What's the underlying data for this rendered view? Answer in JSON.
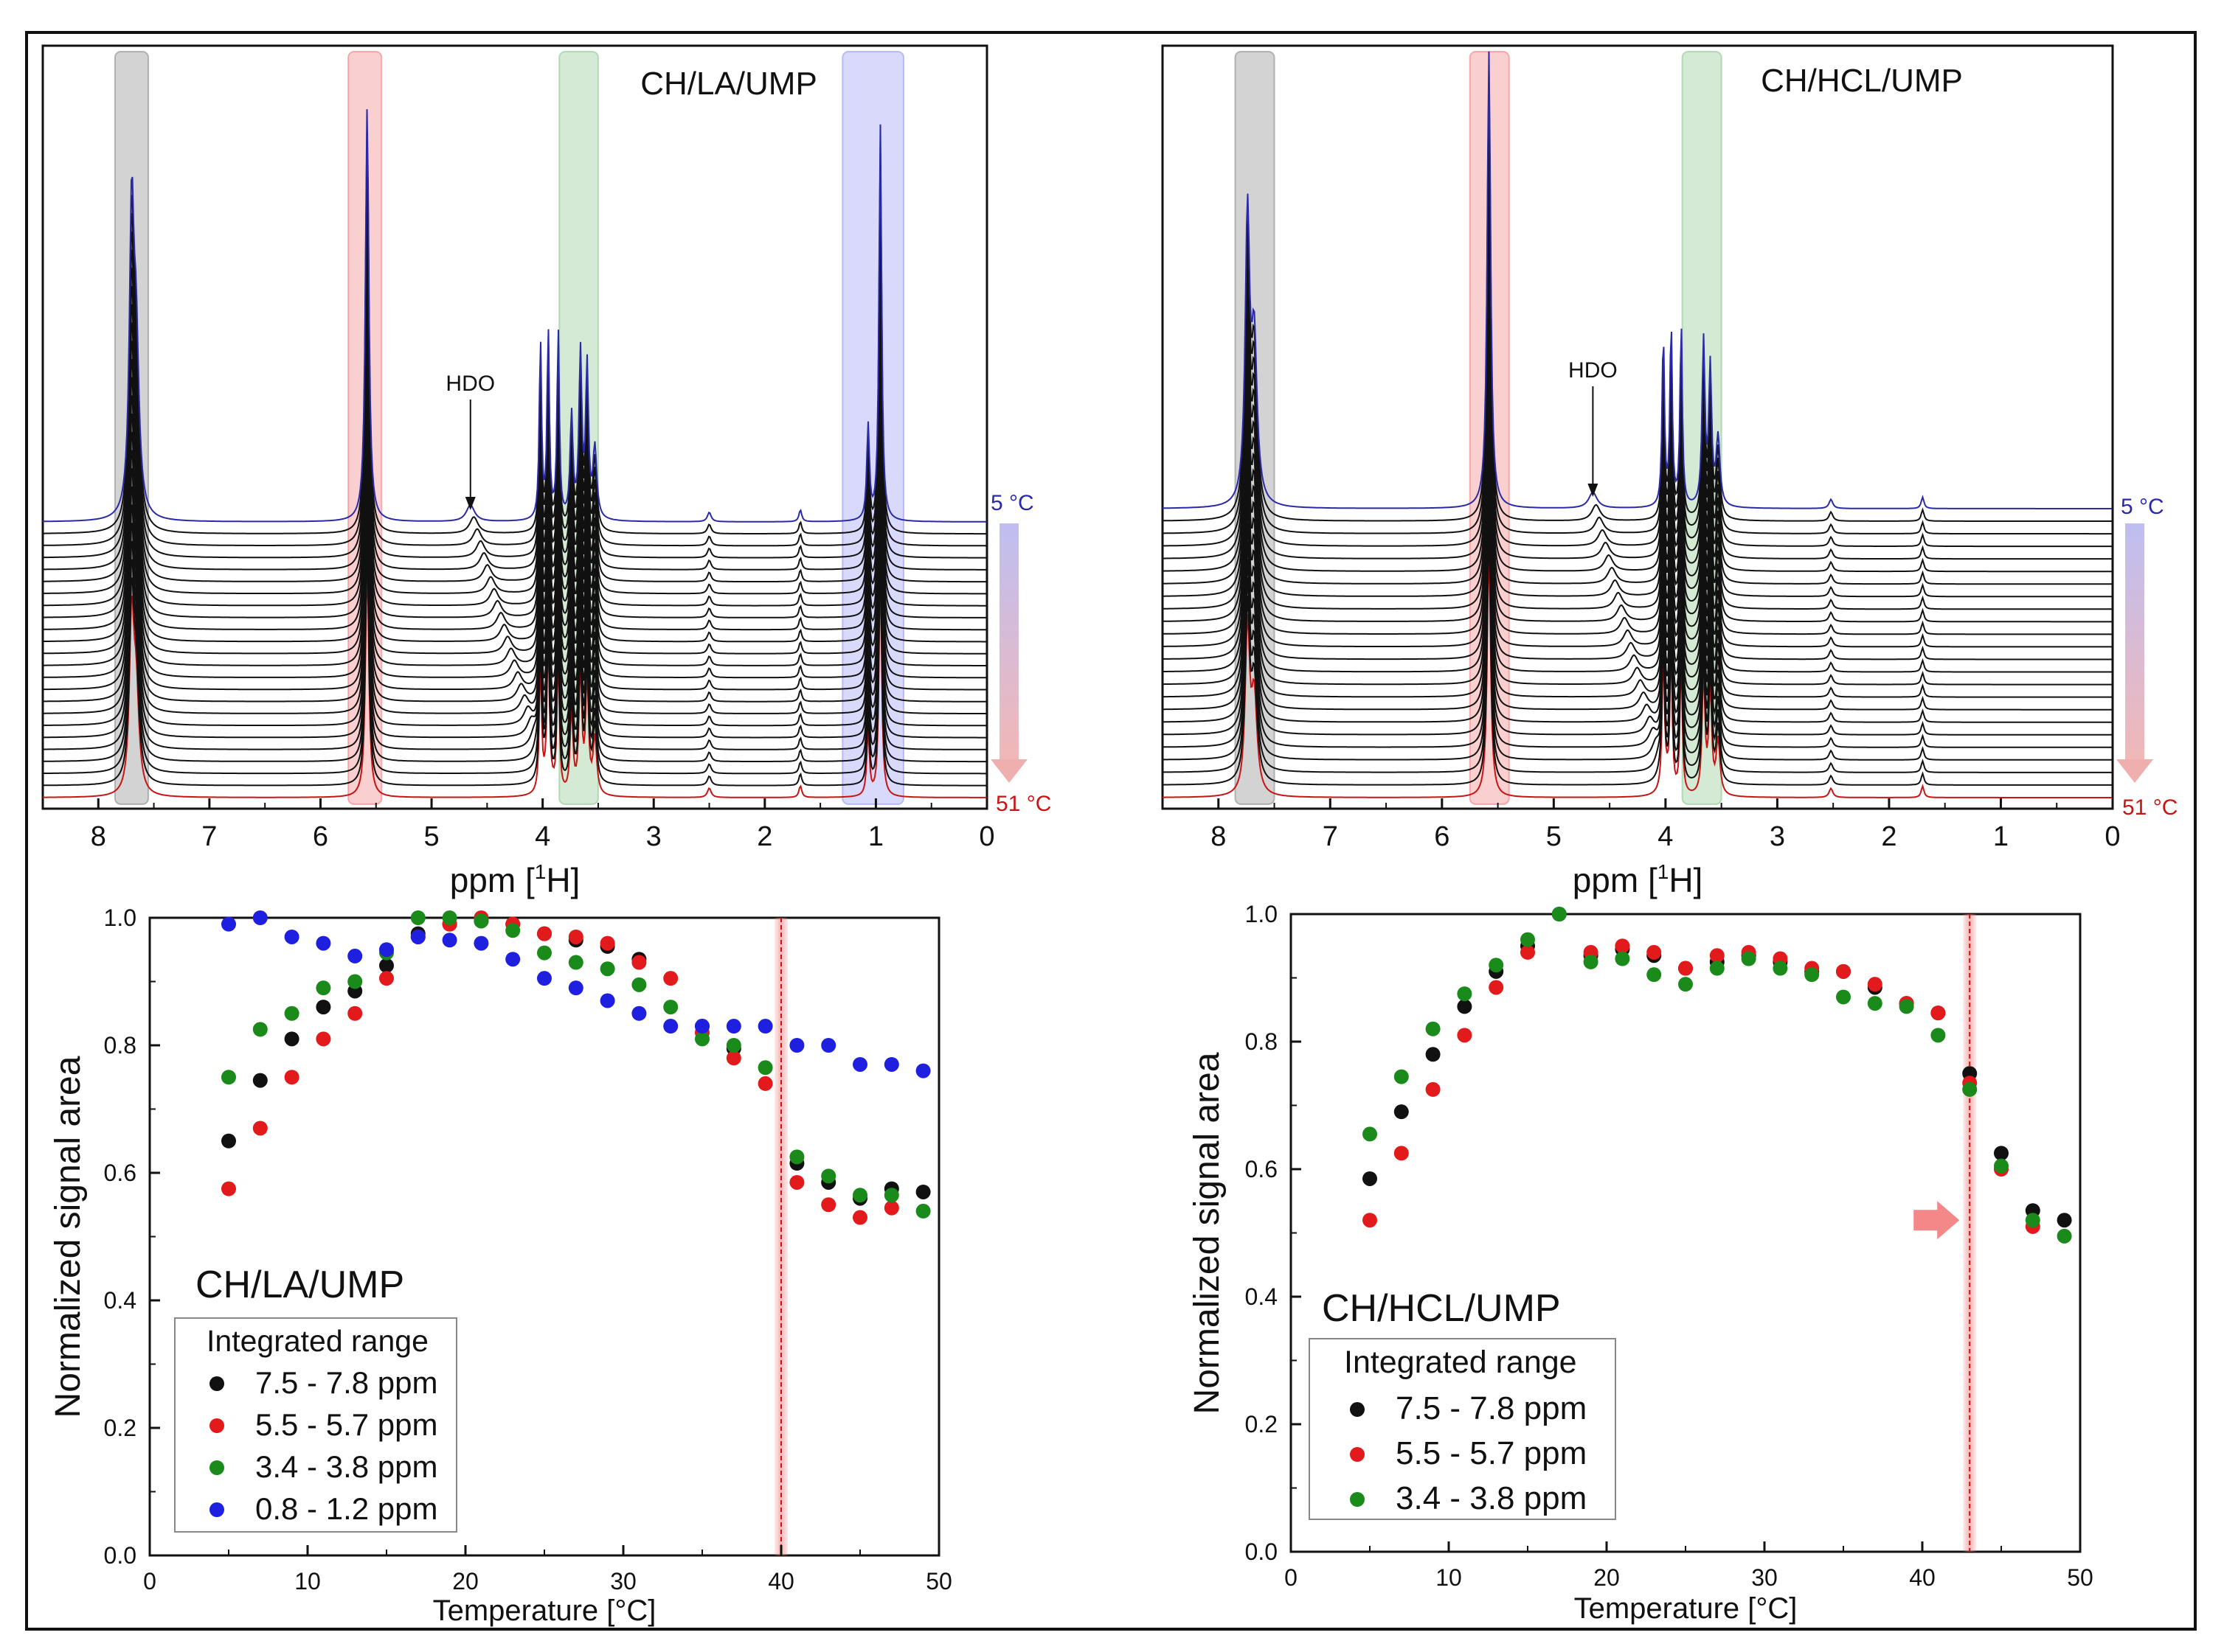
{
  "colors": {
    "black": "#111111",
    "red": "#e31a1c",
    "green": "#1a8a1a",
    "blue": "#1f1fe0",
    "band_gray": "#8c8c8c",
    "band_red": "#f08080",
    "band_green": "#90c890",
    "band_blue": "#9a9af5",
    "spec_top": "#2a2aa8",
    "spec_bottom": "#c81414",
    "temp_high": "#e06060",
    "temp_low": "#7070e0"
  },
  "chart_data": [
    {
      "id": "spectrum-left",
      "type": "line",
      "title": "CH/LA/UMP",
      "xlabel_pre": "ppm [",
      "xlabel_sup": "1",
      "xlabel_post": "H]",
      "xlim": [
        8.5,
        0
      ],
      "xticks": [
        "8",
        "7",
        "6",
        "5",
        "4",
        "3",
        "2",
        "1",
        "0"
      ],
      "annotation": "HDO",
      "annotation_ppm": 4.65,
      "temp_top": "5 °C",
      "temp_bottom": "51 °C",
      "highlight_bands_ppm": [
        [
          7.85,
          7.55
        ],
        [
          5.75,
          5.45
        ],
        [
          3.85,
          3.5
        ],
        [
          1.3,
          0.75
        ]
      ],
      "peaks": [
        {
          "ppm": 7.7,
          "h": 0.62,
          "hb": 0.36,
          "w": 0.024
        },
        {
          "ppm": 7.66,
          "h": 0.35,
          "hb": 0.21,
          "w": 0.03
        },
        {
          "ppm": 5.58,
          "h": 0.88,
          "hb": 0.5,
          "w": 0.018
        },
        {
          "ppm": 4.02,
          "h": 0.38,
          "hb": 0.28,
          "w": 0.012
        },
        {
          "ppm": 3.95,
          "h": 0.4,
          "hb": 0.3,
          "w": 0.012
        },
        {
          "ppm": 3.86,
          "h": 0.4,
          "hb": 0.3,
          "w": 0.012
        },
        {
          "ppm": 3.74,
          "h": 0.22,
          "hb": 0.18,
          "w": 0.015
        },
        {
          "ppm": 3.66,
          "h": 0.35,
          "hb": 0.27,
          "w": 0.015
        },
        {
          "ppm": 3.6,
          "h": 0.32,
          "hb": 0.25,
          "w": 0.015
        },
        {
          "ppm": 3.53,
          "h": 0.15,
          "hb": 0.12,
          "w": 0.02
        },
        {
          "ppm": 2.5,
          "h": 0.02,
          "hb": 0.02,
          "w": 0.02
        },
        {
          "ppm": 1.68,
          "h": 0.025,
          "hb": 0.025,
          "w": 0.015
        },
        {
          "ppm": 1.07,
          "h": 0.2,
          "hb": 0.14,
          "w": 0.014
        },
        {
          "ppm": 0.96,
          "h": 0.84,
          "hb": 0.5,
          "w": 0.014
        }
      ],
      "hdo_ppm_range": [
        4.65,
        3.95
      ],
      "n_traces": 24
    },
    {
      "id": "spectrum-right",
      "type": "line",
      "title": "CH/HCL/UMP",
      "xlabel_pre": "ppm [",
      "xlabel_sup": "1",
      "xlabel_post": "H]",
      "xlim": [
        8.5,
        0
      ],
      "xticks": [
        "8",
        "7",
        "6",
        "5",
        "4",
        "3",
        "2",
        "1",
        "0"
      ],
      "annotation": "HDO",
      "annotation_ppm": 4.65,
      "temp_top": "5 °C",
      "temp_bottom": "51 °C",
      "highlight_bands_ppm": [
        [
          7.85,
          7.5
        ],
        [
          5.75,
          5.4
        ],
        [
          3.85,
          3.5
        ]
      ],
      "peaks": [
        {
          "ppm": 7.74,
          "h": 0.62,
          "hb": 0.36,
          "w": 0.024
        },
        {
          "ppm": 7.68,
          "h": 0.35,
          "hb": 0.21,
          "w": 0.03
        },
        {
          "ppm": 5.58,
          "h": 1.0,
          "hb": 0.56,
          "w": 0.018
        },
        {
          "ppm": 4.02,
          "h": 0.38,
          "hb": 0.28,
          "w": 0.012
        },
        {
          "ppm": 3.95,
          "h": 0.4,
          "hb": 0.3,
          "w": 0.012
        },
        {
          "ppm": 3.86,
          "h": 0.4,
          "hb": 0.3,
          "w": 0.012
        },
        {
          "ppm": 3.66,
          "h": 0.36,
          "hb": 0.27,
          "w": 0.015
        },
        {
          "ppm": 3.6,
          "h": 0.3,
          "hb": 0.24,
          "w": 0.015
        },
        {
          "ppm": 3.53,
          "h": 0.15,
          "hb": 0.12,
          "w": 0.02
        },
        {
          "ppm": 2.52,
          "h": 0.02,
          "hb": 0.02,
          "w": 0.02
        },
        {
          "ppm": 1.7,
          "h": 0.025,
          "hb": 0.025,
          "w": 0.015
        }
      ],
      "hdo_ppm_range": [
        4.65,
        4.0
      ],
      "n_traces": 24
    },
    {
      "id": "scatter-left",
      "type": "scatter",
      "title": "CH/LA/UMP",
      "xlabel": "Temperature [°C]",
      "ylabel": "Normalized signal area",
      "xlim": [
        0,
        50
      ],
      "ylim": [
        0.0,
        1.0
      ],
      "xticks": [
        "0",
        "10",
        "20",
        "30",
        "40",
        "50"
      ],
      "yticks": [
        "0.0",
        "0.2",
        "0.4",
        "0.6",
        "0.8",
        "1.0"
      ],
      "vline_x": 40,
      "legend_title": "Integrated range",
      "legend_position": "bottom-left",
      "x": [
        5,
        7,
        9,
        11,
        13,
        15,
        17,
        19,
        21,
        23,
        25,
        27,
        29,
        31,
        33,
        35,
        37,
        39,
        41,
        43,
        45,
        47,
        49
      ],
      "series": [
        {
          "name": "7.5 - 7.8 ppm",
          "color": "#111111",
          "x": [
            5,
            7,
            9,
            11,
            13,
            15,
            17,
            19,
            21,
            23,
            25,
            27,
            29,
            31,
            35,
            37,
            41,
            43,
            45,
            47,
            49
          ],
          "values": [
            0.65,
            0.745,
            0.81,
            0.86,
            0.885,
            0.925,
            0.975,
            0.99,
            0.995,
            0.99,
            0.975,
            0.965,
            0.955,
            0.935,
            0.83,
            0.795,
            0.615,
            0.585,
            0.56,
            0.575,
            0.57
          ]
        },
        {
          "name": "5.5 - 5.7 ppm",
          "color": "#e31a1c",
          "x": [
            5,
            7,
            9,
            11,
            13,
            15,
            17,
            19,
            21,
            23,
            25,
            27,
            29,
            31,
            33,
            35,
            37,
            39,
            41,
            43,
            45,
            47
          ],
          "values": [
            0.575,
            0.67,
            0.75,
            0.81,
            0.85,
            0.905,
            0.97,
            0.99,
            1.0,
            0.99,
            0.975,
            0.97,
            0.96,
            0.93,
            0.905,
            0.82,
            0.78,
            0.74,
            0.585,
            0.55,
            0.53,
            0.545
          ]
        },
        {
          "name": "3.4 - 3.8 ppm",
          "color": "#1a8a1a",
          "x": [
            5,
            7,
            9,
            11,
            13,
            15,
            17,
            19,
            21,
            23,
            25,
            27,
            29,
            31,
            33,
            35,
            37,
            39,
            41,
            43,
            45,
            47,
            49
          ],
          "values": [
            0.75,
            0.825,
            0.85,
            0.89,
            0.9,
            0.945,
            1.0,
            1.0,
            0.995,
            0.98,
            0.945,
            0.93,
            0.92,
            0.895,
            0.86,
            0.81,
            0.8,
            0.765,
            0.625,
            0.595,
            0.565,
            0.565,
            0.54
          ]
        },
        {
          "name": "0.8 - 1.2 ppm",
          "color": "#1f1fe0",
          "x": [
            5,
            7,
            9,
            11,
            13,
            15,
            17,
            19,
            21,
            23,
            25,
            27,
            29,
            31,
            33,
            35,
            37,
            39,
            41,
            43,
            45,
            47,
            49
          ],
          "values": [
            0.99,
            1.0,
            0.97,
            0.96,
            0.94,
            0.95,
            0.97,
            0.965,
            0.96,
            0.935,
            0.905,
            0.89,
            0.87,
            0.85,
            0.83,
            0.83,
            0.83,
            0.83,
            0.8,
            0.8,
            0.77,
            0.77,
            0.76
          ]
        }
      ]
    },
    {
      "id": "scatter-right",
      "type": "scatter",
      "title": "CH/HCL/UMP",
      "xlabel": "Temperature [°C]",
      "ylabel": "Normalized signal area",
      "xlim": [
        0,
        50
      ],
      "ylim": [
        0.0,
        1.0
      ],
      "xticks": [
        "0",
        "10",
        "20",
        "30",
        "40",
        "50"
      ],
      "yticks": [
        "0.0",
        "0.2",
        "0.4",
        "0.6",
        "0.8",
        "1.0"
      ],
      "vline_x": 43,
      "arrow_y": 0.52,
      "legend_title": "Integrated range",
      "legend_position": "bottom-left",
      "series": [
        {
          "name": "7.5 - 7.8 ppm",
          "color": "#111111",
          "x": [
            5,
            7,
            9,
            11,
            13,
            15,
            17,
            19,
            21,
            23,
            25,
            27,
            29,
            31,
            33,
            35,
            37,
            39,
            41,
            43,
            45,
            47,
            49
          ],
          "values": [
            0.585,
            0.69,
            0.78,
            0.855,
            0.91,
            0.95,
            1.0,
            0.935,
            0.945,
            0.935,
            0.915,
            0.925,
            0.935,
            0.925,
            0.91,
            0.91,
            0.885,
            0.86,
            0.845,
            0.75,
            0.625,
            0.535,
            0.52
          ]
        },
        {
          "name": "5.5 - 5.7 ppm",
          "color": "#e31a1c",
          "x": [
            5,
            7,
            9,
            11,
            13,
            15,
            19,
            21,
            23,
            25,
            27,
            29,
            31,
            33,
            35,
            37,
            39,
            41,
            43,
            45,
            47
          ],
          "values": [
            0.52,
            0.625,
            0.725,
            0.81,
            0.885,
            0.94,
            0.94,
            0.95,
            0.94,
            0.915,
            0.935,
            0.94,
            0.93,
            0.915,
            0.91,
            0.89,
            0.86,
            0.845,
            0.735,
            0.6,
            0.51
          ]
        },
        {
          "name": "3.4 - 3.8 ppm",
          "color": "#1a8a1a",
          "x": [
            5,
            7,
            9,
            11,
            13,
            15,
            17,
            19,
            21,
            23,
            25,
            27,
            29,
            31,
            33,
            35,
            37,
            39,
            41,
            43,
            45,
            47,
            49
          ],
          "values": [
            0.655,
            0.745,
            0.82,
            0.875,
            0.92,
            0.96,
            1.0,
            0.925,
            0.93,
            0.905,
            0.89,
            0.915,
            0.93,
            0.915,
            0.905,
            0.87,
            0.86,
            0.855,
            0.81,
            0.725,
            0.605,
            0.52,
            0.495
          ]
        }
      ]
    }
  ]
}
